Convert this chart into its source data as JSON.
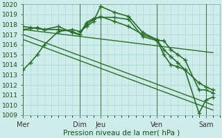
{
  "xlabel": "Pression niveau de la mer( hPa )",
  "ylim": [
    1009,
    1020
  ],
  "xlim": [
    0,
    28
  ],
  "background_color": "#cdecea",
  "grid_color": "#aad8d0",
  "line_color": "#2a6e2a",
  "vline_positions": [
    0,
    8,
    11,
    19,
    26
  ],
  "xtick_positions": [
    0,
    8,
    11,
    19,
    26
  ],
  "xtick_labels": [
    "Mer",
    "Dim",
    "Jeu",
    "Ven",
    "Sam"
  ],
  "lines": [
    {
      "x": [
        0,
        1,
        2,
        3,
        5,
        7,
        8,
        9,
        10,
        11,
        13,
        15,
        17,
        19,
        20,
        21,
        22,
        23,
        25,
        26,
        27
      ],
      "y": [
        1013.5,
        1014.2,
        1015.0,
        1016.0,
        1017.3,
        1017.5,
        1017.3,
        1017.8,
        1018.3,
        1019.8,
        1019.2,
        1018.8,
        1017.2,
        1016.5,
        1015.0,
        1014.0,
        1013.8,
        1013.5,
        1009.2,
        1010.5,
        1010.8
      ],
      "marker": "+",
      "markersize": 4,
      "linewidth": 1.2,
      "markevery": 1
    },
    {
      "x": [
        0,
        1,
        2,
        3,
        5,
        7,
        8,
        9,
        10,
        11,
        13,
        15,
        17,
        19,
        20,
        21,
        22,
        23,
        25,
        26,
        27
      ],
      "y": [
        1017.5,
        1017.6,
        1017.7,
        1017.5,
        1017.8,
        1017.2,
        1017.0,
        1018.2,
        1018.6,
        1018.7,
        1018.7,
        1018.5,
        1016.8,
        1016.4,
        1016.4,
        1015.5,
        1015.0,
        1014.5,
        1011.5,
        1011.5,
        1011.2
      ],
      "marker": "+",
      "markersize": 4,
      "linewidth": 1.2,
      "markevery": 1
    },
    {
      "x": [
        0,
        1,
        2,
        3,
        5,
        7,
        8,
        9,
        10,
        11,
        13,
        15,
        17,
        19,
        20,
        21,
        22,
        23,
        25,
        26,
        27
      ],
      "y": [
        1017.8,
        1017.7,
        1017.6,
        1017.5,
        1017.5,
        1017.3,
        1017.0,
        1018.0,
        1018.5,
        1018.8,
        1018.3,
        1017.8,
        1017.0,
        1016.5,
        1015.5,
        1014.8,
        1014.2,
        1013.5,
        1012.2,
        1011.8,
        1011.5
      ],
      "marker": "+",
      "markersize": 4,
      "linewidth": 1.2,
      "markevery": 1
    },
    {
      "x": [
        0,
        27
      ],
      "y": [
        1017.5,
        1015.2
      ],
      "marker": null,
      "markersize": 0,
      "linewidth": 1.0
    },
    {
      "x": [
        0,
        27
      ],
      "y": [
        1017.0,
        1010.0
      ],
      "marker": null,
      "markersize": 0,
      "linewidth": 1.0
    },
    {
      "x": [
        0,
        27
      ],
      "y": [
        1016.5,
        1009.5
      ],
      "marker": null,
      "markersize": 0,
      "linewidth": 1.0
    }
  ]
}
